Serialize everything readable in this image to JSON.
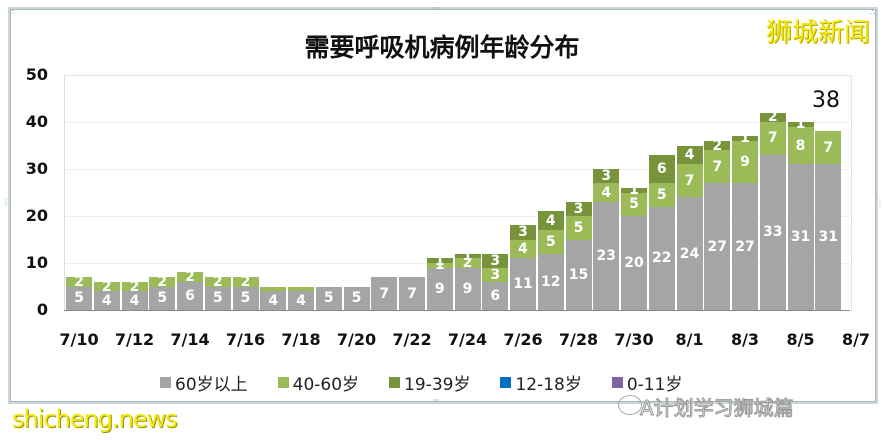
{
  "title": "需要呼吸机病例年龄分布",
  "brand_watermark": "狮城新闻",
  "bottom_watermark_left": "shicheng.news",
  "bottom_watermark_right": "A计划学习狮城篇",
  "total_annotation": "38",
  "colors": {
    "age_60_plus": "#a5a5a5",
    "age_40_60": "#9bbb59",
    "age_19_39": "#77933c",
    "age_12_18": "#0070c0",
    "age_0_11": "#8064a2"
  },
  "legend": [
    {
      "label": "60岁以上",
      "color": "#a5a5a5"
    },
    {
      "label": "40-60岁",
      "color": "#9bbb59"
    },
    {
      "label": "19-39岁",
      "color": "#77933c"
    },
    {
      "label": "12-18岁",
      "color": "#0070c0"
    },
    {
      "label": "0-11岁",
      "color": "#8064a2"
    }
  ],
  "y_ticks": [
    "0",
    "10",
    "20",
    "30",
    "40",
    "50"
  ],
  "x_ticks": [
    "7/10",
    "7/12",
    "7/14",
    "7/16",
    "7/18",
    "7/20",
    "7/22",
    "7/24",
    "7/26",
    "7/28",
    "7/30",
    "8/1",
    "8/3",
    "8/5",
    "8/7"
  ],
  "chart_data": {
    "type": "bar",
    "stacked": true,
    "title": "需要呼吸机病例年龄分布",
    "xlabel": "",
    "ylabel": "",
    "ylim": [
      0,
      50
    ],
    "grid": true,
    "legend_position": "bottom",
    "categories": [
      "7/10",
      "7/11",
      "7/12",
      "7/13",
      "7/14",
      "7/15",
      "7/16",
      "7/17",
      "7/18",
      "7/19",
      "7/20",
      "7/21",
      "7/22",
      "7/23",
      "7/24",
      "7/25",
      "7/26",
      "7/27",
      "7/28",
      "7/29",
      "7/30",
      "7/31",
      "8/1",
      "8/2",
      "8/3",
      "8/4",
      "8/5",
      "8/6"
    ],
    "series": [
      {
        "name": "60岁以上",
        "values": [
          5,
          4,
          4,
          5,
          6,
          5,
          5,
          4,
          4,
          5,
          5,
          7,
          7,
          9,
          9,
          6,
          11,
          12,
          15,
          23,
          20,
          22,
          24,
          27,
          27,
          33,
          31,
          31
        ]
      },
      {
        "name": "40-60岁",
        "values": [
          2,
          2,
          2,
          2,
          2,
          2,
          2,
          1,
          1,
          0,
          0,
          0,
          0,
          1,
          2,
          3,
          4,
          5,
          5,
          4,
          5,
          5,
          7,
          7,
          9,
          7,
          8,
          7
        ]
      },
      {
        "name": "19-39岁",
        "values": [
          0,
          0,
          0,
          0,
          0,
          0,
          0,
          0,
          0,
          0,
          0,
          0,
          0,
          1,
          1,
          3,
          3,
          4,
          3,
          3,
          1,
          6,
          4,
          2,
          1,
          2,
          1,
          0
        ]
      },
      {
        "name": "12-18岁",
        "values": [
          0,
          0,
          0,
          0,
          0,
          0,
          0,
          0,
          0,
          0,
          0,
          0,
          0,
          0,
          0,
          0,
          0,
          0,
          0,
          0,
          0,
          0,
          0,
          0,
          0,
          0,
          0,
          0
        ]
      },
      {
        "name": "0-11岁",
        "values": [
          0,
          0,
          0,
          0,
          0,
          0,
          0,
          0,
          0,
          0,
          0,
          0,
          0,
          0,
          0,
          0,
          0,
          0,
          0,
          0,
          0,
          0,
          0,
          0,
          0,
          0,
          0,
          0
        ]
      }
    ],
    "annotations": [
      {
        "text": "38",
        "x": "8/6"
      }
    ],
    "x_tick_labels": [
      "7/10",
      "7/12",
      "7/14",
      "7/16",
      "7/18",
      "7/20",
      "7/22",
      "7/24",
      "7/26",
      "7/28",
      "7/30",
      "8/1",
      "8/3",
      "8/5",
      "8/7"
    ],
    "y_tick_labels": [
      "0",
      "10",
      "20",
      "30",
      "40",
      "50"
    ]
  }
}
